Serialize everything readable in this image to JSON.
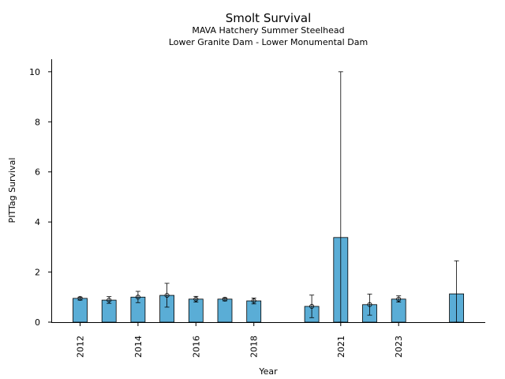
{
  "chart_data": {
    "type": "bar",
    "title": "Smolt Survival",
    "subtitle_lines": [
      "MAVA Hatchery Summer Steelhead",
      "Lower Granite Dam - Lower Monumental Dam"
    ],
    "xlabel": "Year",
    "ylabel": "PITTag Survival",
    "ylim": [
      0,
      10.5
    ],
    "yticks": [
      0,
      2,
      4,
      6,
      8,
      10
    ],
    "x_tick_labels": [
      "2012",
      "2014",
      "2016",
      "2018",
      "2021",
      "2023"
    ],
    "bar_color": "#5aadd6",
    "grid": false,
    "bars": [
      {
        "year": 2012,
        "value": 0.95,
        "err_low": 0.88,
        "err_high": 1.0,
        "point": 0.95
      },
      {
        "year": 2013,
        "value": 0.88,
        "err_low": 0.75,
        "err_high": 1.02,
        "point": 0.88
      },
      {
        "year": 2014,
        "value": 1.0,
        "err_low": 0.78,
        "err_high": 1.23,
        "point": 1.0
      },
      {
        "year": 2015,
        "value": 1.07,
        "err_low": 0.6,
        "err_high": 1.55,
        "point": 1.07
      },
      {
        "year": 2016,
        "value": 0.92,
        "err_low": 0.8,
        "err_high": 1.03,
        "point": 0.92
      },
      {
        "year": 2017,
        "value": 0.92,
        "err_low": 0.85,
        "err_high": 0.97,
        "point": 0.92
      },
      {
        "year": 2018,
        "value": 0.85,
        "err_low": 0.73,
        "err_high": 0.96,
        "point": 0.85
      },
      {
        "year": 2020,
        "value": 0.63,
        "err_low": 0.18,
        "err_high": 1.08,
        "point": 0.63
      },
      {
        "year": 2021,
        "value": 3.38,
        "err_low": 0.0,
        "err_high": 10.0,
        "point": null
      },
      {
        "year": 2022,
        "value": 0.7,
        "err_low": 0.28,
        "err_high": 1.12,
        "point": 0.7
      },
      {
        "year": 2023,
        "value": 0.92,
        "err_low": 0.8,
        "err_high": 1.05,
        "point": 0.92
      },
      {
        "year": 2025,
        "value": 1.13,
        "err_low": 0.0,
        "err_high": 2.45,
        "point": null
      }
    ]
  }
}
